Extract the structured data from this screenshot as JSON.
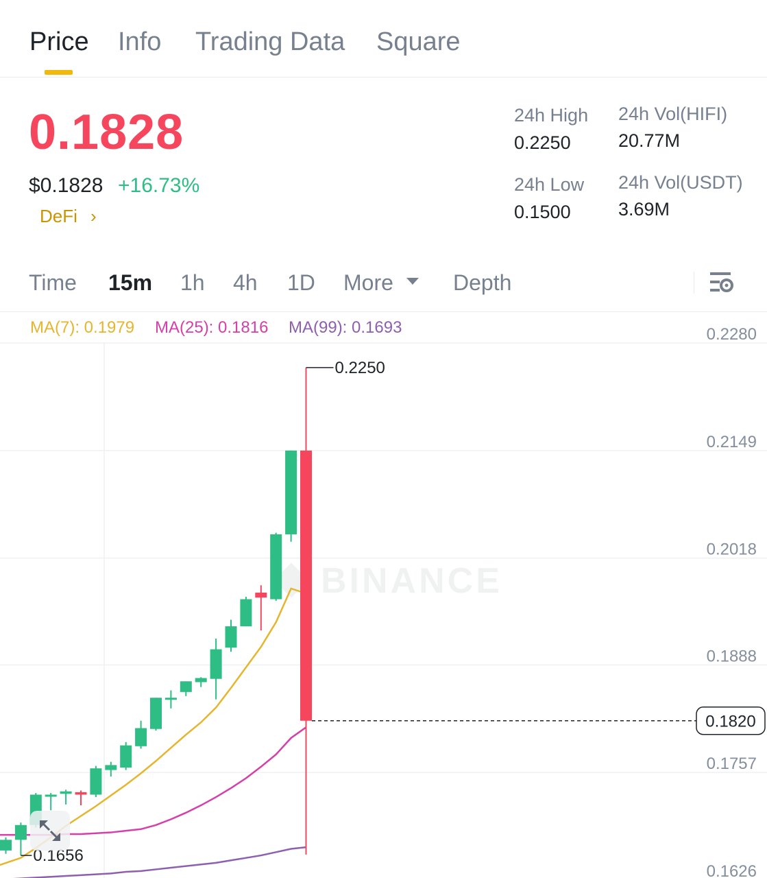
{
  "tabs": [
    {
      "label": "Price",
      "active": true
    },
    {
      "label": "Info",
      "active": false
    },
    {
      "label": "Trading Data",
      "active": false
    },
    {
      "label": "Square",
      "active": false
    }
  ],
  "ticker": {
    "last_price": "0.1828",
    "usd_price": "$0.1828",
    "change_pct": "+16.73%",
    "sector": "DeFi",
    "sector_chevron": "›"
  },
  "stats": {
    "high_label": "24h High",
    "high_value": "0.2250",
    "low_label": "24h Low",
    "low_value": "0.1500",
    "vol_base_label": "24h Vol(HIFI)",
    "vol_base_value": "20.77M",
    "vol_quote_label": "24h Vol(USDT)",
    "vol_quote_value": "3.69M"
  },
  "intervals": {
    "time": "Time",
    "m15": "15m",
    "h1": "1h",
    "h4": "4h",
    "d1": "1D",
    "more": "More",
    "depth": "Depth",
    "active": "15m"
  },
  "indicators": {
    "ma7": "MA(7): 0.1979",
    "ma25": "MA(25): 0.1816",
    "ma99": "MA(99): 0.1693"
  },
  "colors": {
    "up": "#2ebd85",
    "down": "#f6465d",
    "ma7": "#e6b52e",
    "ma25": "#d63fa8",
    "ma99": "#8e5eb0",
    "accent": "#f0b90b"
  },
  "icons": {
    "settings": "chart-settings-icon",
    "more_caret": "caret-down-icon",
    "expand": "expand-arrows-icon"
  },
  "watermark": "BINANCE",
  "chart_data": {
    "type": "candlestick",
    "interval": "15m",
    "y_ticks": [
      "0.2280",
      "0.2149",
      "0.2018",
      "0.1888",
      "0.1757",
      "0.1626"
    ],
    "ylim": [
      0.1626,
      0.228
    ],
    "current_price_label": "0.1820",
    "high_marker": "0.2250",
    "low_marker": "0.1656",
    "candles": [
      {
        "o": 0.1662,
        "h": 0.1678,
        "l": 0.1658,
        "c": 0.1675
      },
      {
        "o": 0.1675,
        "h": 0.1696,
        "l": 0.1656,
        "c": 0.1693
      },
      {
        "o": 0.1693,
        "h": 0.1732,
        "l": 0.169,
        "c": 0.173
      },
      {
        "o": 0.1728,
        "h": 0.1732,
        "l": 0.1711,
        "c": 0.173
      },
      {
        "o": 0.1731,
        "h": 0.1736,
        "l": 0.1718,
        "c": 0.1734
      },
      {
        "o": 0.1733,
        "h": 0.1735,
        "l": 0.1717,
        "c": 0.173
      },
      {
        "o": 0.173,
        "h": 0.1765,
        "l": 0.1727,
        "c": 0.1762
      },
      {
        "o": 0.176,
        "h": 0.177,
        "l": 0.1752,
        "c": 0.1766
      },
      {
        "o": 0.1763,
        "h": 0.1794,
        "l": 0.176,
        "c": 0.179
      },
      {
        "o": 0.1789,
        "h": 0.182,
        "l": 0.1786,
        "c": 0.1811
      },
      {
        "o": 0.181,
        "h": 0.1848,
        "l": 0.1808,
        "c": 0.1848
      },
      {
        "o": 0.1846,
        "h": 0.1857,
        "l": 0.1835,
        "c": 0.1848
      },
      {
        "o": 0.1855,
        "h": 0.1868,
        "l": 0.185,
        "c": 0.1868
      },
      {
        "o": 0.1867,
        "h": 0.1873,
        "l": 0.1861,
        "c": 0.1872
      },
      {
        "o": 0.1871,
        "h": 0.192,
        "l": 0.1846,
        "c": 0.1907
      },
      {
        "o": 0.1909,
        "h": 0.1943,
        "l": 0.1904,
        "c": 0.1935
      },
      {
        "o": 0.1935,
        "h": 0.1971,
        "l": 0.1935,
        "c": 0.1968
      },
      {
        "o": 0.1976,
        "h": 0.1985,
        "l": 0.193,
        "c": 0.197
      },
      {
        "o": 0.1968,
        "h": 0.2049,
        "l": 0.1966,
        "c": 0.2047
      },
      {
        "o": 0.2047,
        "h": 0.2149,
        "l": 0.2038,
        "c": 0.2149
      },
      {
        "o": 0.2149,
        "h": 0.225,
        "l": 0.1657,
        "c": 0.182
      }
    ],
    "series": [
      {
        "name": "MA(7)",
        "values": [
          null,
          0.1653,
          0.1665,
          0.1678,
          0.1692,
          0.1704,
          0.1716,
          0.1729,
          0.1742,
          0.1756,
          0.1771,
          0.1787,
          0.1803,
          0.1818,
          0.1836,
          0.186,
          0.1885,
          0.191,
          0.194,
          0.1981,
          0.1975
        ]
      },
      {
        "name": "MA(25)",
        "values": [
          0.1681,
          0.1681,
          0.1681,
          0.1681,
          0.1682,
          0.1682,
          0.1683,
          0.1684,
          0.1686,
          0.1688,
          0.1693,
          0.17,
          0.1708,
          0.1717,
          0.1727,
          0.1738,
          0.175,
          0.1764,
          0.1779,
          0.1799,
          0.1812
        ]
      },
      {
        "name": "MA(99)",
        "values": [
          0.1627,
          0.1628,
          0.1629,
          0.163,
          0.1631,
          0.1632,
          0.1633,
          0.1634,
          0.1636,
          0.1637,
          0.1639,
          0.1641,
          0.1643,
          0.1645,
          0.1647,
          0.165,
          0.1653,
          0.1656,
          0.166,
          0.1664,
          0.1666
        ]
      }
    ]
  }
}
